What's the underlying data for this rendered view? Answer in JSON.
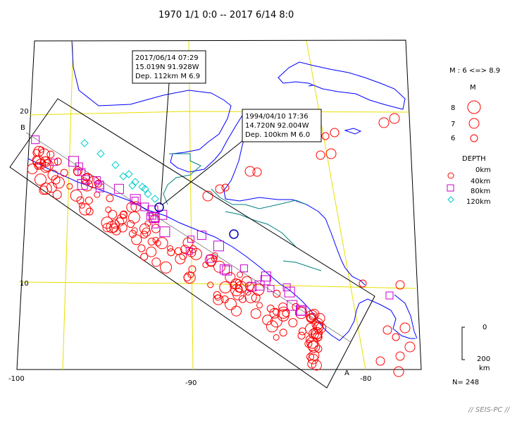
{
  "title": "1970 1/1 0:0 -- 2017 6/14 8:0",
  "map": {
    "lat_labels": [
      "20",
      "10"
    ],
    "lon_labels": [
      "-100",
      "-90",
      "-80"
    ],
    "section_labels": {
      "start": "B",
      "end": "A"
    }
  },
  "callouts": [
    {
      "lines": [
        "2017/06/14 07:29",
        "15.019N  91.928W",
        "Dep. 112km    M 6.9"
      ]
    },
    {
      "lines": [
        "1994/04/10 17:36",
        "14.720N  92.004W",
        "Dep. 100km    M 6.0"
      ]
    }
  ],
  "legend": {
    "magnitude_range": "M : 6 <=> 8.9",
    "magnitude_title": "M",
    "magnitudes": [
      "8",
      "7",
      "6"
    ],
    "depth_title": "DEPTH",
    "depths": [
      "0km",
      "40km",
      "80km",
      "120km"
    ],
    "depth_colors": [
      "#ff0000",
      "#ff0000",
      "#cc00cc",
      "#00cccc"
    ],
    "depth_symbols": [
      "circle",
      "circle",
      "square",
      "diamond"
    ],
    "scale_labels": [
      "0",
      "200",
      "km"
    ],
    "count": "N= 248"
  },
  "credit": "// SEIS-PC //",
  "colors": {
    "frame": "#000000",
    "grid": "#e8e000",
    "coast": "#0000ff",
    "rivers": "#008080",
    "shallow": "#ff0000",
    "intermediate": "#cc00cc",
    "deep": "#00cccc"
  }
}
